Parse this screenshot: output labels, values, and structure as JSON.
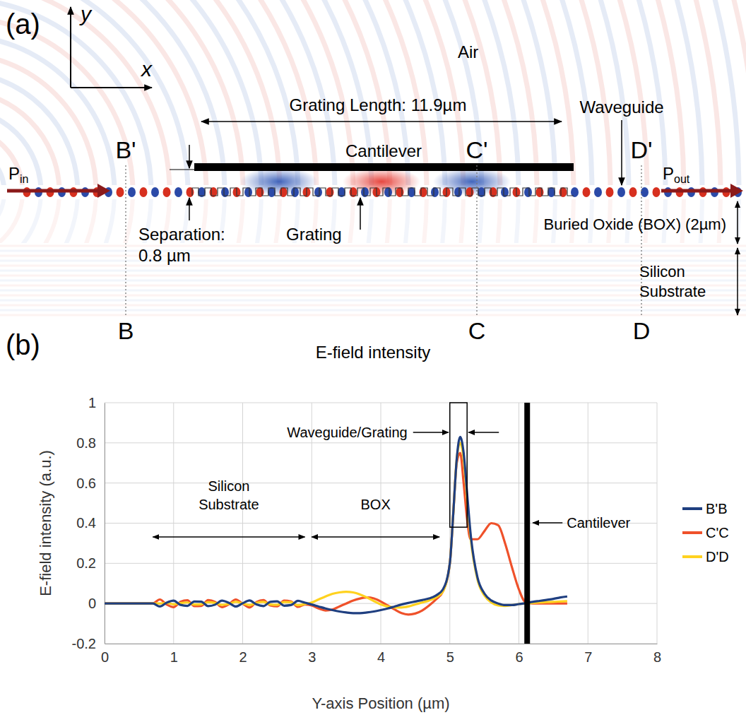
{
  "diagram": {
    "panel_label": "(a)",
    "axis_y": "y",
    "axis_x": "x",
    "air": "Air",
    "grating_length": "Grating Length: 11.9µm",
    "cantilever": "Cantilever",
    "waveguide": "Waveguide",
    "grating": "Grating",
    "separation": [
      "Separation:",
      "0.8 µm"
    ],
    "box": "Buried Oxide (BOX) (2µm)",
    "substrate": [
      "Silicon",
      "Substrate"
    ],
    "power_in": {
      "symbol": "P",
      "subscript": "in"
    },
    "power_out": {
      "symbol": "P",
      "subscript": "out"
    },
    "cuts": [
      {
        "top": "B'",
        "bottom": "B"
      },
      {
        "top": "C'",
        "bottom": "C"
      },
      {
        "top": "D'",
        "bottom": "D"
      }
    ],
    "caption": "E-field intensity"
  },
  "chart_data": {
    "type": "line",
    "panel_label": "(b)",
    "xlabel": "Y-axis Position (µm)",
    "ylabel": "E-field intensity (a.u.)",
    "x": [
      0,
      0.1,
      0.2,
      0.3,
      0.4,
      0.5,
      0.6,
      0.7,
      0.8,
      0.9,
      1.0,
      1.1,
      1.2,
      1.3,
      1.4,
      1.5,
      1.6,
      1.7,
      1.8,
      1.9,
      2.0,
      2.1,
      2.2,
      2.3,
      2.4,
      2.5,
      2.6,
      2.7,
      2.8,
      2.9,
      3.0,
      3.1,
      3.2,
      3.3,
      3.4,
      3.5,
      3.6,
      3.7,
      3.8,
      3.9,
      4.0,
      4.1,
      4.2,
      4.3,
      4.4,
      4.5,
      4.6,
      4.7,
      4.8,
      4.9,
      5.0,
      5.05,
      5.1,
      5.15,
      5.2,
      5.25,
      5.3,
      5.4,
      5.5,
      5.6,
      5.7,
      5.8,
      5.9,
      6.0,
      6.1,
      6.2,
      6.3,
      6.4,
      6.5,
      6.6,
      6.7
    ],
    "xlim": [
      0,
      8
    ],
    "ylim": [
      -0.2,
      1
    ],
    "xticks": [
      0,
      1,
      2,
      3,
      4,
      5,
      6,
      7,
      8
    ],
    "yticks": [
      -0.2,
      0,
      0.2,
      0.4,
      0.6,
      0.8,
      1
    ],
    "grid": true,
    "legend": "right",
    "series": [
      {
        "name": "B'B",
        "color": "#1f3f80",
        "values": [
          0,
          0,
          0,
          0,
          0,
          0,
          0,
          0,
          -0.015,
          0.004,
          0.014,
          -0.007,
          -0.012,
          0.01,
          0.009,
          -0.013,
          -0.006,
          0.014,
          0.003,
          -0.015,
          0.001,
          0.015,
          -0.005,
          -0.013,
          0.008,
          0.011,
          -0.011,
          -0.008,
          0.013,
          0.004,
          -0.005,
          -0.015,
          -0.025,
          -0.033,
          -0.04,
          -0.045,
          -0.048,
          -0.048,
          -0.045,
          -0.04,
          -0.033,
          -0.025,
          -0.015,
          -0.005,
          0.003,
          0.01,
          0.017,
          0.025,
          0.04,
          0.07,
          0.2,
          0.45,
          0.72,
          0.83,
          0.75,
          0.55,
          0.35,
          0.13,
          0.05,
          0.015,
          0,
          -0.008,
          -0.008,
          -0.003,
          0.002,
          0.008,
          0.013,
          0.018,
          0.023,
          0.03,
          0.035
        ]
      },
      {
        "name": "C'C",
        "color": "#ef512a",
        "values": [
          0,
          0,
          0,
          0,
          0,
          0,
          0,
          0,
          0.02,
          -0.005,
          -0.018,
          0.009,
          0.016,
          -0.013,
          -0.012,
          0.017,
          0.008,
          -0.018,
          -0.004,
          0.02,
          -0.001,
          -0.02,
          0.007,
          0.017,
          -0.01,
          -0.014,
          0.014,
          0.01,
          -0.017,
          -0.005,
          -0.01,
          -0.025,
          -0.035,
          -0.03,
          -0.015,
          0,
          0.015,
          0.025,
          0.03,
          0.025,
          0.01,
          -0.01,
          -0.03,
          -0.048,
          -0.055,
          -0.05,
          -0.035,
          -0.01,
          0.02,
          0.06,
          0.2,
          0.45,
          0.7,
          0.75,
          0.6,
          0.42,
          0.32,
          0.32,
          0.36,
          0.4,
          0.39,
          0.3,
          0.18,
          0.07,
          0.005,
          0,
          0,
          0,
          0,
          0,
          0
        ]
      },
      {
        "name": "D'D",
        "color": "#ffd21f",
        "values": [
          0,
          0,
          0,
          0,
          0,
          0,
          0,
          0,
          0,
          0.003,
          -0.004,
          0.002,
          0.005,
          -0.005,
          -0.004,
          0.006,
          0.003,
          -0.007,
          -0.002,
          0.008,
          0,
          -0.008,
          0.003,
          0.008,
          -0.005,
          -0.007,
          0.007,
          0.006,
          -0.009,
          -0.003,
          0.005,
          0.02,
          0.035,
          0.048,
          0.055,
          0.058,
          0.055,
          0.045,
          0.03,
          0.012,
          -0.005,
          -0.015,
          -0.02,
          -0.02,
          -0.015,
          -0.005,
          0.005,
          0.015,
          0.03,
          0.06,
          0.2,
          0.45,
          0.72,
          0.8,
          0.72,
          0.52,
          0.33,
          0.12,
          0.04,
          0.005,
          -0.01,
          -0.012,
          -0.008,
          -0.003,
          0,
          0.003,
          0.005,
          0.007,
          0.008,
          0.01,
          0.012
        ]
      }
    ],
    "annotations": [
      {
        "text": "Waveguide/Grating",
        "x": [
          5.0,
          5.25
        ],
        "y": [
          0.38,
          1
        ]
      },
      {
        "text": "Cantilever",
        "x": 6.12
      },
      {
        "text": "Silicon Substrate",
        "x": [
          0.7,
          2.9
        ]
      },
      {
        "text": "BOX",
        "x": [
          3.0,
          4.85
        ]
      }
    ]
  }
}
